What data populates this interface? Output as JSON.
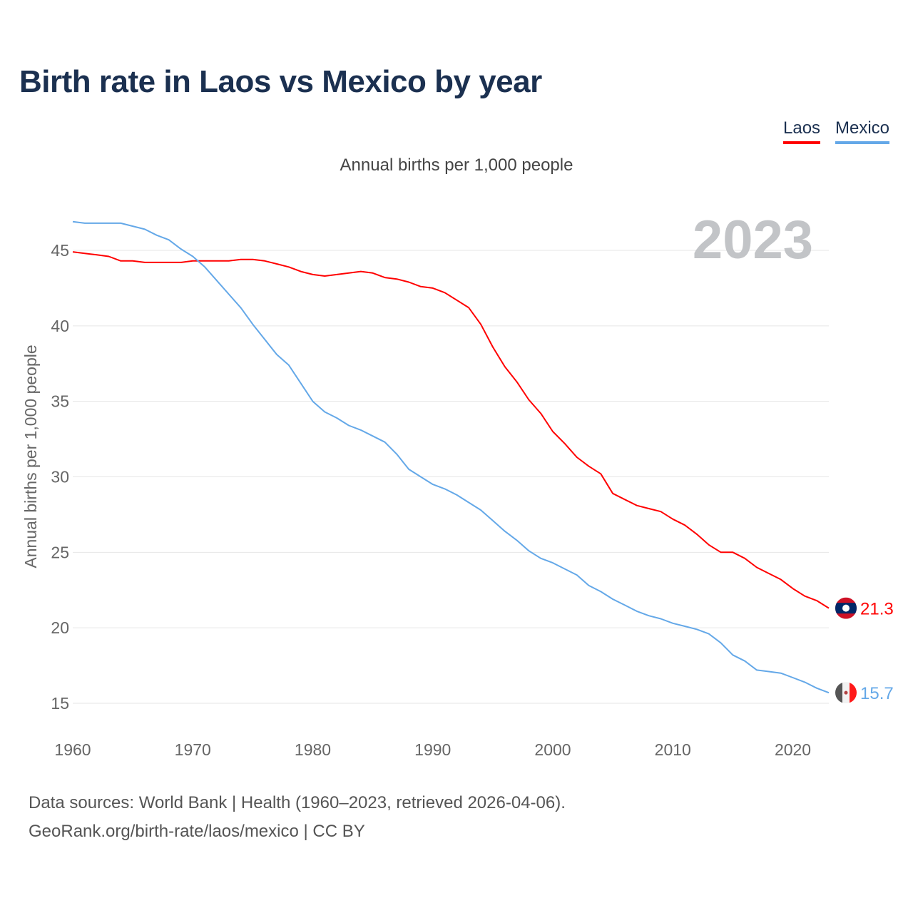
{
  "title": "Birth rate in Laos vs Mexico by year",
  "legend": [
    {
      "name": "Laos"
    },
    {
      "name": "Mexico"
    }
  ],
  "footer": {
    "line1": "Data sources: World Bank | Health (1960–2023, retrieved 2026-04-06).",
    "line2": "GeoRank.org/birth-rate/laos/mexico | CC BY"
  },
  "colors": {
    "laos": "#ff0000",
    "mexico": "#64a8e8"
  },
  "chart_data": {
    "type": "line",
    "title": "Birth rate in Laos vs Mexico by year",
    "subtitle": "Annual births per 1,000 people",
    "xlabel": "",
    "ylabel": "Annual births per 1,000 people",
    "watermark_year": "2023",
    "xlim": [
      1960,
      2023
    ],
    "ylim": [
      13,
      47.5
    ],
    "xticks": [
      1960,
      1970,
      1980,
      1990,
      2000,
      2010,
      2020
    ],
    "yticks": [
      15,
      20,
      25,
      30,
      35,
      40,
      45
    ],
    "grid": true,
    "legend_position": "top-right",
    "x_start": 1960,
    "series": [
      {
        "name": "Laos",
        "color": "#ff0000",
        "end_label": "21.3",
        "values": [
          44.9,
          44.8,
          44.7,
          44.6,
          44.3,
          44.3,
          44.2,
          44.2,
          44.2,
          44.2,
          44.3,
          44.3,
          44.3,
          44.3,
          44.4,
          44.4,
          44.3,
          44.1,
          43.9,
          43.6,
          43.4,
          43.3,
          43.4,
          43.5,
          43.6,
          43.5,
          43.2,
          43.1,
          42.9,
          42.6,
          42.5,
          42.2,
          41.7,
          41.2,
          40.1,
          38.6,
          37.3,
          36.3,
          35.1,
          34.2,
          33.0,
          32.2,
          31.3,
          30.7,
          30.2,
          28.9,
          28.5,
          28.1,
          27.9,
          27.7,
          27.2,
          26.8,
          26.2,
          25.5,
          25.0,
          25.0,
          24.6,
          24.0,
          23.6,
          23.2,
          22.6,
          22.1,
          21.8,
          21.3
        ]
      },
      {
        "name": "Mexico",
        "color": "#64a8e8",
        "end_label": "15.7",
        "values": [
          46.9,
          46.8,
          46.8,
          46.8,
          46.8,
          46.6,
          46.4,
          46.0,
          45.7,
          45.1,
          44.6,
          43.9,
          43.0,
          42.1,
          41.2,
          40.1,
          39.1,
          38.1,
          37.4,
          36.2,
          35.0,
          34.3,
          33.9,
          33.4,
          33.1,
          32.7,
          32.3,
          31.5,
          30.5,
          30.0,
          29.5,
          29.2,
          28.8,
          28.3,
          27.8,
          27.1,
          26.4,
          25.8,
          25.1,
          24.6,
          24.3,
          23.9,
          23.5,
          22.8,
          22.4,
          21.9,
          21.5,
          21.1,
          20.8,
          20.6,
          20.3,
          20.1,
          19.9,
          19.6,
          19.0,
          18.2,
          17.8,
          17.2,
          17.1,
          17.0,
          16.7,
          16.4,
          16.0,
          15.7
        ]
      }
    ]
  }
}
